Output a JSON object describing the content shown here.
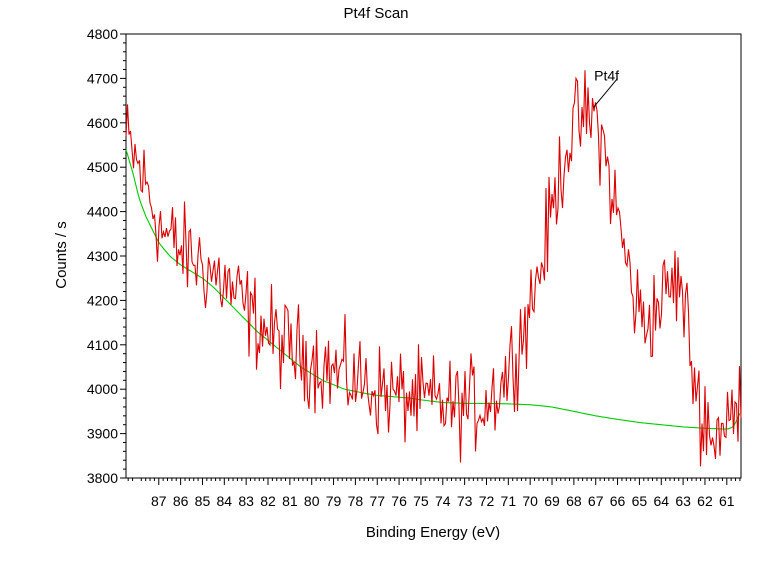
{
  "chart_data": {
    "type": "line",
    "title": "Pt4f Scan",
    "xlabel": "Binding Energy (eV)",
    "ylabel": "Counts / s",
    "xlim": [
      88.5,
      60.35
    ],
    "ylim": [
      3800,
      4800
    ],
    "x_reversed": true,
    "grid": false,
    "x_ticks": [
      87,
      86,
      85,
      84,
      83,
      82,
      81,
      80,
      79,
      78,
      77,
      76,
      75,
      74,
      73,
      72,
      71,
      70,
      69,
      68,
      67,
      66,
      65,
      64,
      63,
      62,
      61
    ],
    "y_ticks": [
      3800,
      3900,
      4000,
      4100,
      4200,
      4300,
      4400,
      4500,
      4600,
      4700,
      4800
    ],
    "colors": {
      "spectrum": "#dd0000",
      "background": "#00cc00"
    },
    "series": [
      {
        "role": "spectrum",
        "control": {
          "x": [
            88.5,
            88.1,
            87.7,
            87.3,
            86.9,
            86.4,
            86.0,
            85.5,
            85.0,
            84.5,
            84.0,
            83.5,
            83.0,
            82.5,
            82.0,
            81.5,
            81.0,
            80.5,
            80.0,
            79.5,
            79.0,
            78.5,
            78.0,
            77.5,
            77.0,
            76.5,
            76.0,
            75.5,
            75.0,
            74.5,
            74.0,
            73.5,
            73.0,
            72.5,
            72.0,
            71.5,
            71.0,
            70.5,
            70.0,
            69.5,
            69.0,
            68.5,
            68.0,
            67.5,
            67.0,
            66.7,
            66.4,
            66.0,
            65.6,
            65.2,
            64.8,
            64.4,
            64.0,
            63.6,
            63.2,
            62.9,
            62.6,
            62.3,
            62.0,
            61.6,
            61.2,
            60.8,
            60.35
          ],
          "y": [
            4560,
            4520,
            4470,
            4420,
            4360,
            4330,
            4310,
            4300,
            4280,
            4260,
            4240,
            4210,
            4180,
            4150,
            4130,
            4110,
            4090,
            4080,
            4070,
            4055,
            4040,
            4030,
            4020,
            4010,
            4000,
            3990,
            3985,
            3980,
            3975,
            3970,
            3965,
            3960,
            3960,
            3965,
            3975,
            4000,
            4040,
            4110,
            4190,
            4280,
            4400,
            4520,
            4590,
            4610,
            4610,
            4560,
            4480,
            4390,
            4290,
            4200,
            4150,
            4170,
            4200,
            4230,
            4240,
            4180,
            4060,
            3970,
            3920,
            3900,
            3910,
            3930,
            3950
          ]
        },
        "noise_amplitude": 52
      },
      {
        "role": "background",
        "x": [
          88.5,
          88.2,
          87.9,
          87.6,
          87.3,
          87.0,
          86.5,
          86.0,
          85.5,
          85.0,
          84.5,
          84.0,
          83.5,
          83.0,
          82.5,
          82.0,
          81.5,
          81.0,
          80.5,
          80.0,
          79.5,
          79.0,
          78.5,
          78.0,
          77.5,
          77.0,
          76.5,
          76.0,
          75.5,
          75.0,
          74.5,
          74.0,
          73.0,
          72.0,
          71.0,
          70.0,
          69.0,
          68.0,
          67.0,
          66.0,
          65.0,
          64.0,
          63.0,
          62.0,
          61.0,
          60.7,
          60.35
        ],
        "y": [
          4540,
          4490,
          4430,
          4390,
          4360,
          4330,
          4300,
          4280,
          4265,
          4250,
          4230,
          4205,
          4180,
          4155,
          4130,
          4110,
          4090,
          4070,
          4050,
          4035,
          4020,
          4010,
          4000,
          3995,
          3990,
          3986,
          3984,
          3982,
          3980,
          3976,
          3973,
          3970,
          3968,
          3968,
          3967,
          3965,
          3960,
          3950,
          3940,
          3932,
          3925,
          3920,
          3915,
          3912,
          3910,
          3915,
          3950
        ]
      }
    ],
    "annotations": [
      {
        "text": "Pt4f",
        "x": 66.5,
        "y": 4700,
        "pointer_from": [
          66.0,
          4700
        ],
        "pointer_to": [
          67.1,
          4635
        ]
      }
    ]
  }
}
